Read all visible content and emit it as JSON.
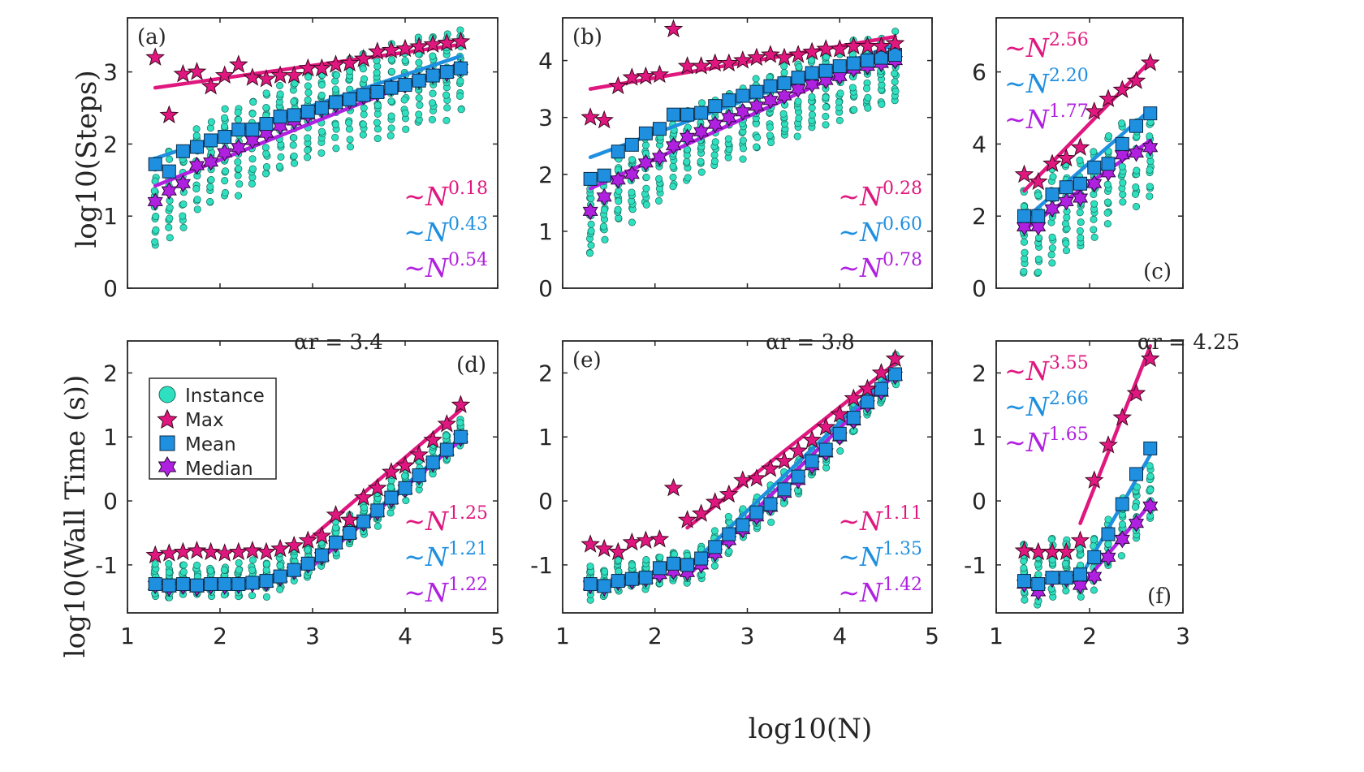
{
  "figure": {
    "ylabel_top": "log10(Steps)",
    "ylabel_bottom": "log10(Wall Time (s))",
    "xlabel": "log10(N)",
    "alpha_labels": [
      "αr = 3.4",
      "αr = 3.8",
      "αr = 4.25"
    ],
    "legend": [
      "Instance",
      "Max",
      "Mean",
      "Median"
    ],
    "colors": {
      "instance": "#2fe0c0",
      "max": "#e0177e",
      "mean": "#1f8fe0",
      "median": "#b020e0"
    }
  },
  "chart_data": [
    {
      "panel": "(a)",
      "type": "scatter",
      "ylabel": "log10(Steps)",
      "xlim": [
        1,
        5
      ],
      "ylim": [
        0,
        3.75
      ],
      "xticks": [
        "1",
        "2",
        "3",
        "4",
        "5"
      ],
      "yticks": [
        "0",
        "1",
        "2",
        "3"
      ],
      "x": [
        1.3,
        1.45,
        1.6,
        1.75,
        1.9,
        2.05,
        2.2,
        2.35,
        2.5,
        2.65,
        2.8,
        2.95,
        3.1,
        3.25,
        3.4,
        3.55,
        3.7,
        3.85,
        4.0,
        4.15,
        4.3,
        4.45,
        4.6
      ],
      "max": [
        3.2,
        2.4,
        2.97,
        3.0,
        2.8,
        2.95,
        3.1,
        2.92,
        2.9,
        2.95,
        2.95,
        3.05,
        3.05,
        3.1,
        3.12,
        3.18,
        3.28,
        3.3,
        3.32,
        3.35,
        3.38,
        3.4,
        3.42
      ],
      "mean": [
        1.72,
        1.62,
        1.9,
        1.96,
        2.05,
        2.1,
        2.2,
        2.2,
        2.28,
        2.38,
        2.4,
        2.45,
        2.5,
        2.58,
        2.62,
        2.68,
        2.72,
        2.78,
        2.82,
        2.88,
        2.95,
        3.0,
        3.05
      ],
      "median": [
        1.2,
        1.35,
        1.45,
        1.7,
        1.75,
        1.88,
        1.95,
        2.05,
        2.15,
        2.25,
        2.32,
        2.4,
        2.48,
        2.55,
        2.6,
        2.66,
        2.7,
        2.78,
        2.82,
        2.88,
        2.95,
        2.98,
        3.05
      ],
      "fits": [
        {
          "name": "max",
          "x": [
            1.3,
            4.6
          ],
          "y": [
            2.78,
            3.38
          ]
        },
        {
          "name": "mean",
          "x": [
            1.3,
            4.6
          ],
          "y": [
            1.8,
            3.22
          ]
        },
        {
          "name": "median",
          "x": [
            1.3,
            4.6
          ],
          "y": [
            1.42,
            3.12
          ]
        }
      ],
      "annotations": [
        "∼N^0.18",
        "∼N^0.43",
        "∼N^0.54"
      ],
      "spread": [
        0.6,
        0.55
      ]
    },
    {
      "panel": "(b)",
      "type": "scatter",
      "ylabel": "log10(Steps)",
      "xlim": [
        1,
        5
      ],
      "ylim": [
        0,
        4.75
      ],
      "xticks": [
        "1",
        "2",
        "3",
        "4",
        "5"
      ],
      "yticks": [
        "0",
        "1",
        "2",
        "3",
        "4"
      ],
      "x": [
        1.3,
        1.45,
        1.6,
        1.75,
        1.9,
        2.05,
        2.2,
        2.35,
        2.5,
        2.65,
        2.8,
        2.95,
        3.1,
        3.25,
        3.4,
        3.55,
        3.7,
        3.85,
        4.0,
        4.15,
        4.3,
        4.45,
        4.6
      ],
      "max": [
        3.0,
        2.95,
        3.55,
        3.7,
        3.72,
        3.75,
        4.55,
        3.9,
        3.9,
        3.95,
        3.95,
        4.0,
        4.05,
        4.1,
        4.05,
        4.1,
        4.15,
        4.2,
        4.2,
        4.25,
        4.25,
        4.25,
        4.3
      ],
      "mean": [
        1.92,
        1.98,
        2.4,
        2.52,
        2.72,
        2.8,
        3.05,
        3.05,
        3.08,
        3.2,
        3.3,
        3.38,
        3.45,
        3.55,
        3.6,
        3.7,
        3.78,
        3.82,
        3.9,
        3.95,
        4.0,
        4.05,
        4.1
      ],
      "median": [
        1.35,
        1.6,
        1.9,
        2.0,
        2.2,
        2.3,
        2.5,
        2.65,
        2.75,
        2.88,
        3.0,
        3.1,
        3.2,
        3.3,
        3.38,
        3.5,
        3.58,
        3.65,
        3.72,
        3.85,
        3.9,
        3.95,
        4.0
      ],
      "fits": [
        {
          "name": "max",
          "x": [
            1.3,
            4.6
          ],
          "y": [
            3.5,
            4.42
          ]
        },
        {
          "name": "mean",
          "x": [
            1.3,
            4.6
          ],
          "y": [
            2.3,
            4.28
          ]
        },
        {
          "name": "median",
          "x": [
            1.3,
            4.6
          ],
          "y": [
            1.75,
            4.2
          ]
        }
      ],
      "annotations": [
        "∼N^0.28",
        "∼N^0.60",
        "∼N^0.78"
      ],
      "spread": [
        0.75,
        0.45
      ]
    },
    {
      "panel": "(c)",
      "type": "scatter",
      "ylabel": "log10(Steps)",
      "xlim": [
        1,
        3
      ],
      "ylim": [
        0,
        7.5
      ],
      "xticks": [
        "1",
        "2",
        "3"
      ],
      "yticks": [
        "0",
        "2",
        "4",
        "6"
      ],
      "x": [
        1.3,
        1.45,
        1.6,
        1.75,
        1.9,
        2.05,
        2.2,
        2.35,
        2.5,
        2.65
      ],
      "max": [
        3.15,
        2.95,
        3.45,
        3.6,
        3.9,
        4.9,
        5.25,
        5.5,
        5.75,
        6.25
      ],
      "mean": [
        2.0,
        2.0,
        2.6,
        2.8,
        2.9,
        3.35,
        3.45,
        4.0,
        4.5,
        4.85
      ],
      "median": [
        1.7,
        1.7,
        2.2,
        2.4,
        2.5,
        2.9,
        3.2,
        3.7,
        3.75,
        3.9
      ],
      "fits": [
        {
          "name": "max",
          "x": [
            1.3,
            2.65
          ],
          "y": [
            2.7,
            6.3
          ]
        },
        {
          "name": "mean",
          "x": [
            1.3,
            2.65
          ],
          "y": [
            1.9,
            4.95
          ]
        },
        {
          "name": "median",
          "x": [
            1.3,
            2.65
          ],
          "y": [
            1.62,
            4.1
          ]
        }
      ],
      "annotations": [
        "∼N^2.56",
        "∼N^2.20",
        "∼N^1.77"
      ],
      "spread": [
        1.4,
        1.0
      ]
    },
    {
      "panel": "(d)",
      "type": "scatter",
      "ylabel": "log10(Wall Time (s))",
      "xlim": [
        1,
        5
      ],
      "ylim": [
        -1.75,
        2.5
      ],
      "xticks": [
        "1",
        "2",
        "3",
        "4",
        "5"
      ],
      "yticks": [
        "-1",
        "0",
        "1",
        "2"
      ],
      "x": [
        1.3,
        1.45,
        1.6,
        1.75,
        1.9,
        2.05,
        2.2,
        2.35,
        2.5,
        2.65,
        2.8,
        2.95,
        3.1,
        3.25,
        3.4,
        3.55,
        3.7,
        3.85,
        4.0,
        4.15,
        4.3,
        4.45,
        4.6
      ],
      "max": [
        -0.85,
        -0.82,
        -0.8,
        -0.78,
        -0.8,
        -0.82,
        -0.8,
        -0.78,
        -0.8,
        -0.75,
        -0.7,
        -0.62,
        -0.55,
        -0.22,
        -0.3,
        0.05,
        0.2,
        0.45,
        0.55,
        0.72,
        0.95,
        1.2,
        1.5
      ],
      "mean": [
        -1.3,
        -1.32,
        -1.3,
        -1.32,
        -1.3,
        -1.3,
        -1.3,
        -1.28,
        -1.25,
        -1.18,
        -1.08,
        -0.98,
        -0.85,
        -0.65,
        -0.5,
        -0.32,
        -0.15,
        0.05,
        0.2,
        0.4,
        0.6,
        0.8,
        1.0
      ],
      "median": [
        -1.32,
        -1.36,
        -1.33,
        -1.36,
        -1.33,
        -1.33,
        -1.32,
        -1.3,
        -1.28,
        -1.2,
        -1.1,
        -1.0,
        -0.87,
        -0.68,
        -0.52,
        -0.35,
        -0.18,
        0.02,
        0.18,
        0.38,
        0.58,
        0.78,
        0.98
      ],
      "fits": [
        {
          "name": "max",
          "x": [
            2.95,
            4.6
          ],
          "y": [
            -0.62,
            1.42
          ]
        },
        {
          "name": "mean",
          "x": [
            2.95,
            4.6
          ],
          "y": [
            -1.05,
            0.98
          ]
        },
        {
          "name": "median",
          "x": [
            2.95,
            4.6
          ],
          "y": [
            -1.08,
            0.95
          ]
        }
      ],
      "annotations": [
        "∼N^1.25",
        "∼N^1.21",
        "∼N^1.22"
      ],
      "spread": [
        0.15,
        0.3
      ]
    },
    {
      "panel": "(e)",
      "type": "scatter",
      "ylabel": "log10(Wall Time (s))",
      "xlim": [
        1,
        5
      ],
      "ylim": [
        -1.75,
        2.5
      ],
      "xticks": [
        "1",
        "2",
        "3",
        "4",
        "5"
      ],
      "yticks": [
        "-1",
        "0",
        "1",
        "2"
      ],
      "x": [
        1.3,
        1.45,
        1.6,
        1.75,
        1.9,
        2.05,
        2.2,
        2.35,
        2.5,
        2.65,
        2.8,
        2.95,
        3.1,
        3.25,
        3.4,
        3.55,
        3.7,
        3.85,
        4.0,
        4.15,
        4.3,
        4.45,
        4.6
      ],
      "max": [
        -0.68,
        -0.75,
        -0.8,
        -0.65,
        -0.62,
        -0.6,
        0.2,
        -0.3,
        -0.2,
        -0.02,
        0.1,
        0.32,
        0.35,
        0.5,
        0.62,
        0.78,
        0.95,
        1.15,
        1.35,
        1.6,
        1.75,
        2.0,
        2.22
      ],
      "mean": [
        -1.3,
        -1.33,
        -1.25,
        -1.22,
        -1.2,
        -1.05,
        -0.98,
        -1.0,
        -0.9,
        -0.72,
        -0.52,
        -0.38,
        -0.18,
        -0.05,
        0.18,
        0.38,
        0.62,
        0.8,
        1.05,
        1.3,
        1.55,
        1.75,
        1.98
      ],
      "median": [
        -1.32,
        -1.36,
        -1.27,
        -1.25,
        -1.22,
        -1.15,
        -1.1,
        -1.12,
        -1.0,
        -0.82,
        -0.62,
        -0.45,
        -0.25,
        -0.1,
        0.12,
        0.32,
        0.55,
        0.75,
        1.0,
        1.25,
        1.5,
        1.7,
        1.95
      ],
      "fits": [
        {
          "name": "max",
          "x": [
            2.35,
            4.6
          ],
          "y": [
            -0.42,
            2.15
          ]
        },
        {
          "name": "mean",
          "x": [
            2.35,
            4.6
          ],
          "y": [
            -1.05,
            2.05
          ]
        },
        {
          "name": "median",
          "x": [
            2.35,
            4.6
          ],
          "y": [
            -1.18,
            1.98
          ]
        }
      ],
      "annotations": [
        "∼N^1.11",
        "∼N^1.35",
        "∼N^1.42"
      ],
      "spread": [
        0.15,
        0.3
      ]
    },
    {
      "panel": "(f)",
      "type": "scatter",
      "ylabel": "log10(Wall Time (s))",
      "xlim": [
        1,
        3
      ],
      "ylim": [
        -1.75,
        2.5
      ],
      "xticks": [
        "1",
        "2",
        "3"
      ],
      "yticks": [
        "-1",
        "0",
        "1",
        "2"
      ],
      "x": [
        1.3,
        1.45,
        1.6,
        1.75,
        1.9,
        2.05,
        2.2,
        2.35,
        2.5,
        2.65
      ],
      "max": [
        -0.78,
        -0.8,
        -0.8,
        -0.8,
        -0.62,
        0.32,
        0.87,
        1.3,
        1.68,
        2.22
      ],
      "mean": [
        -1.25,
        -1.3,
        -1.2,
        -1.2,
        -1.15,
        -0.88,
        -0.52,
        -0.05,
        0.42,
        0.82
      ],
      "median": [
        -1.3,
        -1.42,
        -1.22,
        -1.22,
        -1.32,
        -1.18,
        -0.88,
        -0.6,
        -0.35,
        -0.08
      ],
      "fits": [
        {
          "name": "max",
          "x": [
            1.9,
            2.65
          ],
          "y": [
            -0.35,
            2.42
          ]
        },
        {
          "name": "mean",
          "x": [
            1.9,
            2.65
          ],
          "y": [
            -1.2,
            0.72
          ]
        },
        {
          "name": "median",
          "x": [
            1.9,
            2.65
          ],
          "y": [
            -1.35,
            -0.05
          ]
        }
      ],
      "annotations": [
        "∼N^3.55",
        "∼N^2.66",
        "∼N^1.65"
      ],
      "spread": [
        0.2,
        0.6
      ]
    }
  ]
}
